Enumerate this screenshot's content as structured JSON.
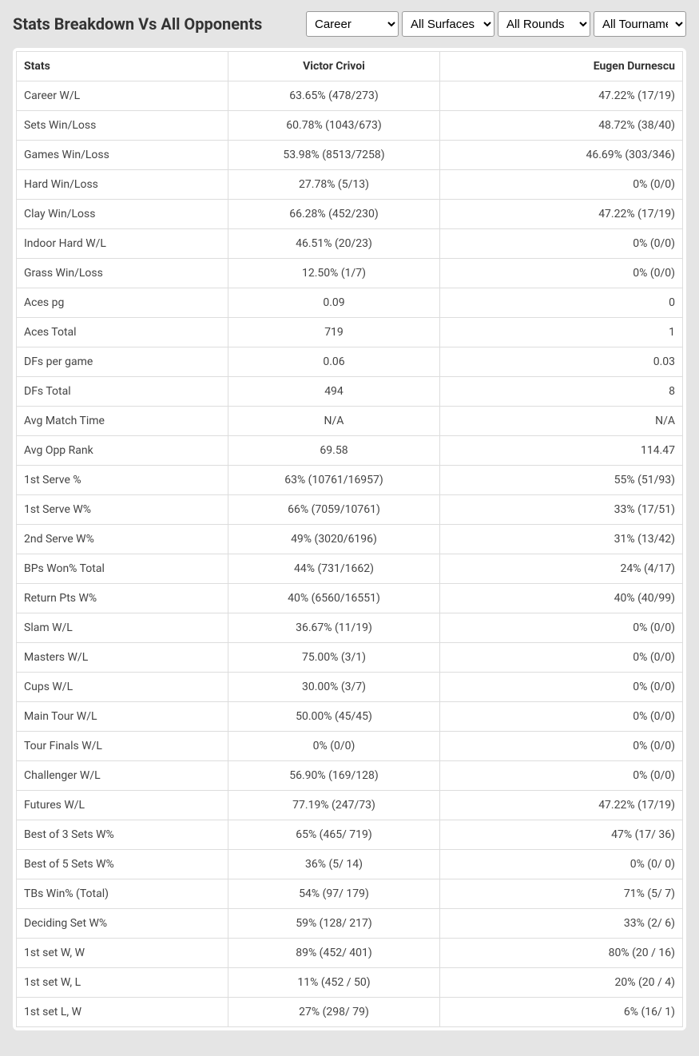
{
  "header": {
    "title": "Stats Breakdown Vs All Opponents"
  },
  "filters": {
    "career": "Career",
    "surface": "All Surfaces",
    "rounds": "All Rounds",
    "tournament": "All Tournaments"
  },
  "table": {
    "columns": [
      "Stats",
      "Victor Crivoi",
      "Eugen Durnescu"
    ],
    "rows": [
      [
        "Career W/L",
        "63.65% (478/273)",
        "47.22% (17/19)"
      ],
      [
        "Sets Win/Loss",
        "60.78% (1043/673)",
        "48.72% (38/40)"
      ],
      [
        "Games Win/Loss",
        "53.98% (8513/7258)",
        "46.69% (303/346)"
      ],
      [
        "Hard Win/Loss",
        "27.78% (5/13)",
        "0% (0/0)"
      ],
      [
        "Clay Win/Loss",
        "66.28% (452/230)",
        "47.22% (17/19)"
      ],
      [
        "Indoor Hard W/L",
        "46.51% (20/23)",
        "0% (0/0)"
      ],
      [
        "Grass Win/Loss",
        "12.50% (1/7)",
        "0% (0/0)"
      ],
      [
        "Aces pg",
        "0.09",
        "0"
      ],
      [
        "Aces Total",
        "719",
        "1"
      ],
      [
        "DFs per game",
        "0.06",
        "0.03"
      ],
      [
        "DFs Total",
        "494",
        "8"
      ],
      [
        "Avg Match Time",
        "N/A",
        "N/A"
      ],
      [
        "Avg Opp Rank",
        "69.58",
        "114.47"
      ],
      [
        "1st Serve %",
        "63% (10761/16957)",
        "55% (51/93)"
      ],
      [
        "1st Serve W%",
        "66% (7059/10761)",
        "33% (17/51)"
      ],
      [
        "2nd Serve W%",
        "49% (3020/6196)",
        "31% (13/42)"
      ],
      [
        "BPs Won% Total",
        "44% (731/1662)",
        "24% (4/17)"
      ],
      [
        "Return Pts W%",
        "40% (6560/16551)",
        "40% (40/99)"
      ],
      [
        "Slam W/L",
        "36.67% (11/19)",
        "0% (0/0)"
      ],
      [
        "Masters W/L",
        "75.00% (3/1)",
        "0% (0/0)"
      ],
      [
        "Cups W/L",
        "30.00% (3/7)",
        "0% (0/0)"
      ],
      [
        "Main Tour W/L",
        "50.00% (45/45)",
        "0% (0/0)"
      ],
      [
        "Tour Finals W/L",
        "0% (0/0)",
        "0% (0/0)"
      ],
      [
        "Challenger W/L",
        "56.90% (169/128)",
        "0% (0/0)"
      ],
      [
        "Futures W/L",
        "77.19% (247/73)",
        "47.22% (17/19)"
      ],
      [
        "Best of 3 Sets W%",
        "65% (465/ 719)",
        "47% (17/ 36)"
      ],
      [
        "Best of 5 Sets W%",
        "36% (5/ 14)",
        "0% (0/ 0)"
      ],
      [
        "TBs Win% (Total)",
        "54% (97/ 179)",
        "71% (5/ 7)"
      ],
      [
        "Deciding Set W%",
        "59% (128/ 217)",
        "33% (2/ 6)"
      ],
      [
        "1st set W, W",
        "89% (452/ 401)",
        "80% (20 / 16)"
      ],
      [
        "1st set W, L",
        "11% (452 / 50)",
        "20% (20 / 4)"
      ],
      [
        "1st set L, W",
        "27% (298/ 79)",
        "6% (16/ 1)"
      ]
    ]
  },
  "colors": {
    "page_bg": "#e5e5e5",
    "table_bg": "#ffffff",
    "border": "#dddddd",
    "text": "#333333"
  }
}
